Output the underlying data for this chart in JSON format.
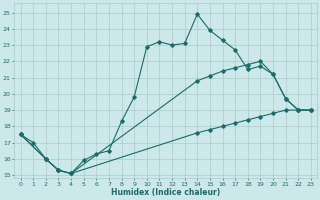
{
  "xlabel": "Humidex (Indice chaleur)",
  "bg_color": "#cce8e8",
  "grid_color": "#aacccc",
  "line_color": "#1a6b6b",
  "xlim": [
    -0.5,
    23.5
  ],
  "ylim": [
    14.8,
    25.6
  ],
  "yticks": [
    15,
    16,
    17,
    18,
    19,
    20,
    21,
    22,
    23,
    24,
    25
  ],
  "xticks": [
    0,
    1,
    2,
    3,
    4,
    5,
    6,
    7,
    8,
    9,
    10,
    11,
    12,
    13,
    14,
    15,
    16,
    17,
    18,
    19,
    20,
    21,
    22,
    23
  ],
  "line1_x": [
    0,
    1,
    2,
    3,
    4,
    5,
    6,
    7,
    8,
    9,
    10,
    11,
    12,
    13,
    14,
    15,
    16,
    17,
    18,
    19,
    20,
    21,
    22,
    23
  ],
  "line1_y": [
    17.5,
    17.0,
    16.0,
    15.3,
    15.1,
    15.9,
    16.3,
    16.5,
    18.3,
    19.8,
    22.9,
    23.2,
    23.0,
    23.1,
    24.9,
    23.9,
    23.3,
    22.7,
    21.5,
    21.7,
    21.2,
    19.7,
    19.0,
    19.0
  ],
  "line2_x": [
    0,
    2,
    3,
    4,
    14,
    15,
    16,
    17,
    18,
    19,
    20,
    21,
    22,
    23
  ],
  "line2_y": [
    17.5,
    16.0,
    15.3,
    15.1,
    20.8,
    21.1,
    21.4,
    21.6,
    21.8,
    22.0,
    21.2,
    19.7,
    19.0,
    19.0
  ],
  "line3_x": [
    0,
    2,
    3,
    4,
    14,
    15,
    16,
    17,
    18,
    19,
    20,
    21,
    22,
    23
  ],
  "line3_y": [
    17.5,
    16.0,
    15.3,
    15.1,
    17.6,
    17.8,
    18.0,
    18.2,
    18.4,
    18.6,
    18.8,
    19.0,
    19.0,
    19.0
  ]
}
